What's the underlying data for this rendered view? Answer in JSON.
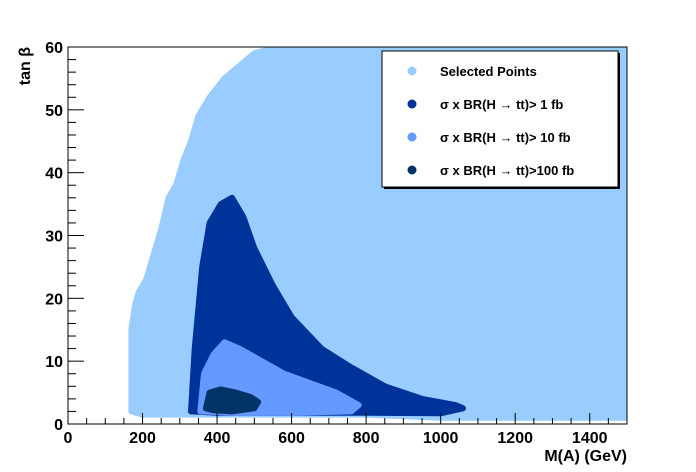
{
  "chart_data": {
    "type": "scatter",
    "title": "",
    "xlabel": "M(A) (GeV)",
    "ylabel": "tan β",
    "xlim": [
      0,
      1500
    ],
    "ylim": [
      0,
      60
    ],
    "x_ticks": [
      0,
      200,
      400,
      600,
      800,
      1000,
      1200,
      1400
    ],
    "y_ticks": [
      0,
      10,
      20,
      30,
      40,
      50,
      60
    ],
    "grid": false,
    "legend_position": "top-right",
    "series": [
      {
        "name": "Selected Points",
        "color": "#99ccff",
        "boundary": [
          [
            170,
            2
          ],
          [
            170,
            15
          ],
          [
            180,
            19
          ],
          [
            190,
            21
          ],
          [
            210,
            23
          ],
          [
            230,
            27
          ],
          [
            250,
            31
          ],
          [
            270,
            36
          ],
          [
            290,
            38
          ],
          [
            310,
            42
          ],
          [
            330,
            45
          ],
          [
            350,
            49
          ],
          [
            380,
            52
          ],
          [
            420,
            55
          ],
          [
            460,
            57
          ],
          [
            500,
            59
          ],
          [
            560,
            60
          ],
          [
            600,
            60
          ],
          [
            1500,
            60
          ],
          [
            1500,
            1
          ],
          [
            1000,
            1
          ],
          [
            800,
            1.5
          ],
          [
            400,
            1.5
          ],
          [
            200,
            1.5
          ]
        ]
      },
      {
        "name": "σ x BR(H → tt)>  1 fb",
        "color": "#003399",
        "boundary": [
          [
            330,
            2
          ],
          [
            340,
            12
          ],
          [
            360,
            25
          ],
          [
            380,
            32
          ],
          [
            410,
            35
          ],
          [
            440,
            36
          ],
          [
            470,
            33
          ],
          [
            500,
            28
          ],
          [
            550,
            22
          ],
          [
            600,
            17
          ],
          [
            680,
            12
          ],
          [
            760,
            9
          ],
          [
            850,
            6
          ],
          [
            950,
            4
          ],
          [
            1040,
            3
          ],
          [
            1060,
            2.5
          ],
          [
            1000,
            1.7
          ],
          [
            800,
            1.8
          ],
          [
            600,
            1.8
          ],
          [
            400,
            1.8
          ]
        ]
      },
      {
        "name": "σ x BR(H → tt)> 10 fb",
        "color": "#6699ff",
        "boundary": [
          [
            355,
            2
          ],
          [
            365,
            8
          ],
          [
            390,
            11
          ],
          [
            420,
            13
          ],
          [
            460,
            12
          ],
          [
            520,
            10
          ],
          [
            580,
            8
          ],
          [
            650,
            6.5
          ],
          [
            720,
            5
          ],
          [
            780,
            3
          ],
          [
            760,
            2
          ],
          [
            600,
            1.8
          ],
          [
            450,
            1.8
          ]
        ]
      },
      {
        "name": "σ x BR(H → tt)>100 fb",
        "color": "#003366",
        "boundary": [
          [
            370,
            2.5
          ],
          [
            380,
            5
          ],
          [
            410,
            5.5
          ],
          [
            450,
            5
          ],
          [
            490,
            4.3
          ],
          [
            510,
            3.5
          ],
          [
            500,
            2.5
          ],
          [
            440,
            2
          ],
          [
            390,
            2.2
          ]
        ]
      }
    ]
  }
}
